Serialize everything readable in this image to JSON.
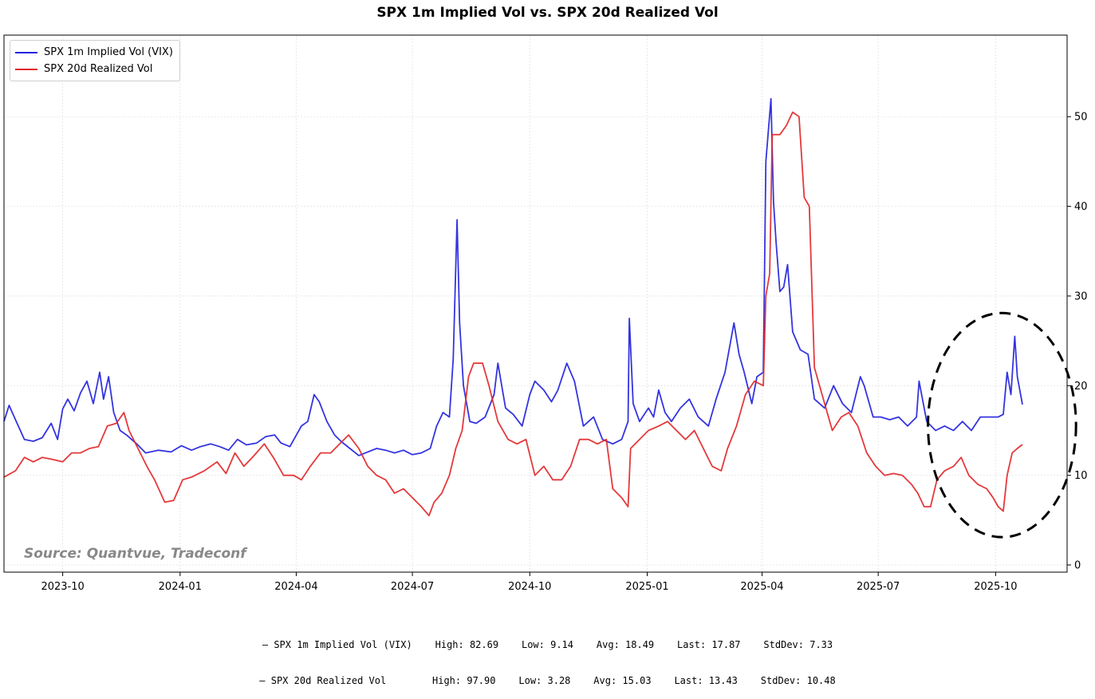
{
  "colors": {
    "implied": "#2323dd",
    "realized": "#e2282a",
    "annotation": "#000000",
    "source": "#888888"
  },
  "chart_data": {
    "type": "line",
    "title": "SPX 1m Implied Vol vs. SPX 20d Realized Vol",
    "xlabel": "",
    "ylabel": "",
    "xlim": [
      "2023-08-16",
      "2025-11-26"
    ],
    "ylim": [
      -0.8,
      59.1
    ],
    "y_axis_side": "right",
    "x_ticks": [
      "2023-10",
      "2024-01",
      "2024-04",
      "2024-07",
      "2024-10",
      "2025-01",
      "2025-04",
      "2025-07",
      "2025-10"
    ],
    "y_ticks": [
      0,
      10,
      20,
      30,
      40,
      50
    ],
    "grid": true,
    "legend_position": "top-left",
    "series": [
      {
        "name": "SPX 1m Implied Vol (VIX)",
        "color": "#2323dd",
        "points": [
          [
            "2023-08-16",
            16
          ],
          [
            "2023-08-20",
            17.8
          ],
          [
            "2023-08-25",
            16.2
          ],
          [
            "2023-09-01",
            14
          ],
          [
            "2023-09-08",
            13.8
          ],
          [
            "2023-09-15",
            14.2
          ],
          [
            "2023-09-22",
            15.8
          ],
          [
            "2023-09-27",
            14
          ],
          [
            "2023-10-01",
            17.4
          ],
          [
            "2023-10-05",
            18.5
          ],
          [
            "2023-10-10",
            17.2
          ],
          [
            "2023-10-15",
            19.2
          ],
          [
            "2023-10-20",
            20.5
          ],
          [
            "2023-10-25",
            18
          ],
          [
            "2023-10-30",
            21.5
          ],
          [
            "2023-11-02",
            18.5
          ],
          [
            "2023-11-06",
            21
          ],
          [
            "2023-11-10",
            17
          ],
          [
            "2023-11-15",
            15
          ],
          [
            "2023-11-20",
            14.5
          ],
          [
            "2023-11-28",
            13.5
          ],
          [
            "2023-12-05",
            12.5
          ],
          [
            "2023-12-15",
            12.8
          ],
          [
            "2023-12-25",
            12.6
          ],
          [
            "2024-01-02",
            13.3
          ],
          [
            "2024-01-10",
            12.8
          ],
          [
            "2024-01-17",
            13.2
          ],
          [
            "2024-01-25",
            13.5
          ],
          [
            "2024-02-01",
            13.2
          ],
          [
            "2024-02-08",
            12.8
          ],
          [
            "2024-02-15",
            14
          ],
          [
            "2024-02-22",
            13.4
          ],
          [
            "2024-03-01",
            13.6
          ],
          [
            "2024-03-08",
            14.3
          ],
          [
            "2024-03-15",
            14.5
          ],
          [
            "2024-03-20",
            13.6
          ],
          [
            "2024-03-27",
            13.2
          ],
          [
            "2024-04-05",
            15.5
          ],
          [
            "2024-04-10",
            16
          ],
          [
            "2024-04-15",
            19
          ],
          [
            "2024-04-19",
            18.2
          ],
          [
            "2024-04-25",
            16
          ],
          [
            "2024-05-01",
            14.5
          ],
          [
            "2024-05-06",
            13.8
          ],
          [
            "2024-05-13",
            13
          ],
          [
            "2024-05-20",
            12.2
          ],
          [
            "2024-05-27",
            12.6
          ],
          [
            "2024-06-03",
            13
          ],
          [
            "2024-06-10",
            12.8
          ],
          [
            "2024-06-17",
            12.5
          ],
          [
            "2024-06-24",
            12.8
          ],
          [
            "2024-07-01",
            12.3
          ],
          [
            "2024-07-08",
            12.5
          ],
          [
            "2024-07-15",
            13
          ],
          [
            "2024-07-20",
            15.5
          ],
          [
            "2024-07-25",
            17
          ],
          [
            "2024-07-30",
            16.5
          ],
          [
            "2024-08-02",
            23
          ],
          [
            "2024-08-05",
            38.5
          ],
          [
            "2024-08-07",
            27
          ],
          [
            "2024-08-10",
            20
          ],
          [
            "2024-08-15",
            16
          ],
          [
            "2024-08-20",
            15.8
          ],
          [
            "2024-08-27",
            16.5
          ],
          [
            "2024-09-03",
            19
          ],
          [
            "2024-09-06",
            22.5
          ],
          [
            "2024-09-12",
            17.5
          ],
          [
            "2024-09-18",
            16.8
          ],
          [
            "2024-09-25",
            15.5
          ],
          [
            "2024-10-01",
            19
          ],
          [
            "2024-10-05",
            20.5
          ],
          [
            "2024-10-12",
            19.5
          ],
          [
            "2024-10-18",
            18.2
          ],
          [
            "2024-10-23",
            19.5
          ],
          [
            "2024-10-30",
            22.5
          ],
          [
            "2024-11-05",
            20.5
          ],
          [
            "2024-11-12",
            15.5
          ],
          [
            "2024-11-20",
            16.5
          ],
          [
            "2024-11-27",
            14
          ],
          [
            "2024-12-05",
            13.5
          ],
          [
            "2024-12-12",
            14
          ],
          [
            "2024-12-17",
            16
          ],
          [
            "2024-12-18",
            27.5
          ],
          [
            "2024-12-21",
            18
          ],
          [
            "2024-12-26",
            16
          ],
          [
            "2025-01-02",
            17.5
          ],
          [
            "2025-01-06",
            16.5
          ],
          [
            "2025-01-10",
            19.5
          ],
          [
            "2025-01-15",
            17
          ],
          [
            "2025-01-20",
            16
          ],
          [
            "2025-01-27",
            17.5
          ],
          [
            "2025-02-03",
            18.5
          ],
          [
            "2025-02-10",
            16.5
          ],
          [
            "2025-02-18",
            15.5
          ],
          [
            "2025-02-24",
            18.5
          ],
          [
            "2025-03-03",
            21.5
          ],
          [
            "2025-03-10",
            27
          ],
          [
            "2025-03-14",
            23.5
          ],
          [
            "2025-03-18",
            21.5
          ],
          [
            "2025-03-24",
            18
          ],
          [
            "2025-03-28",
            21
          ],
          [
            "2025-04-02",
            21.5
          ],
          [
            "2025-04-04",
            45
          ],
          [
            "2025-04-08",
            52
          ],
          [
            "2025-04-10",
            40.5
          ],
          [
            "2025-04-12",
            36
          ],
          [
            "2025-04-15",
            30.5
          ],
          [
            "2025-04-18",
            31
          ],
          [
            "2025-04-21",
            33.5
          ],
          [
            "2025-04-25",
            26
          ],
          [
            "2025-05-01",
            24
          ],
          [
            "2025-05-07",
            23.5
          ],
          [
            "2025-05-12",
            18.5
          ],
          [
            "2025-05-20",
            17.5
          ],
          [
            "2025-05-27",
            20
          ],
          [
            "2025-06-03",
            18
          ],
          [
            "2025-06-10",
            17
          ],
          [
            "2025-06-17",
            21
          ],
          [
            "2025-06-20",
            20
          ],
          [
            "2025-06-27",
            16.5
          ],
          [
            "2025-07-03",
            16.5
          ],
          [
            "2025-07-10",
            16.2
          ],
          [
            "2025-07-17",
            16.5
          ],
          [
            "2025-07-24",
            15.5
          ],
          [
            "2025-07-31",
            16.5
          ],
          [
            "2025-08-02",
            20.5
          ],
          [
            "2025-08-08",
            16
          ],
          [
            "2025-08-15",
            15
          ],
          [
            "2025-08-22",
            15.5
          ],
          [
            "2025-08-29",
            15
          ],
          [
            "2025-09-05",
            16
          ],
          [
            "2025-09-12",
            15
          ],
          [
            "2025-09-19",
            16.5
          ],
          [
            "2025-09-26",
            16.5
          ],
          [
            "2025-10-03",
            16.5
          ],
          [
            "2025-10-07",
            16.8
          ],
          [
            "2025-10-10",
            21.5
          ],
          [
            "2025-10-13",
            19
          ],
          [
            "2025-10-16",
            25.5
          ],
          [
            "2025-10-18",
            21
          ],
          [
            "2025-10-22",
            17.9
          ]
        ]
      },
      {
        "name": "SPX 20d Realized Vol",
        "color": "#e2282a",
        "points": [
          [
            "2023-08-16",
            9.8
          ],
          [
            "2023-08-25",
            10.5
          ],
          [
            "2023-09-01",
            12
          ],
          [
            "2023-09-08",
            11.5
          ],
          [
            "2023-09-15",
            12
          ],
          [
            "2023-09-22",
            11.8
          ],
          [
            "2023-10-01",
            11.5
          ],
          [
            "2023-10-08",
            12.5
          ],
          [
            "2023-10-15",
            12.5
          ],
          [
            "2023-10-22",
            13
          ],
          [
            "2023-10-29",
            13.2
          ],
          [
            "2023-11-05",
            15.5
          ],
          [
            "2023-11-12",
            15.8
          ],
          [
            "2023-11-18",
            17
          ],
          [
            "2023-11-22",
            15
          ],
          [
            "2023-11-29",
            13
          ],
          [
            "2023-12-06",
            11
          ],
          [
            "2023-12-12",
            9.5
          ],
          [
            "2023-12-20",
            7
          ],
          [
            "2023-12-27",
            7.2
          ],
          [
            "2024-01-03",
            9.5
          ],
          [
            "2024-01-10",
            9.8
          ],
          [
            "2024-01-20",
            10.5
          ],
          [
            "2024-01-30",
            11.5
          ],
          [
            "2024-02-06",
            10.2
          ],
          [
            "2024-02-13",
            12.5
          ],
          [
            "2024-02-20",
            11
          ],
          [
            "2024-02-28",
            12.2
          ],
          [
            "2024-03-07",
            13.5
          ],
          [
            "2024-03-14",
            12
          ],
          [
            "2024-03-22",
            10
          ],
          [
            "2024-03-30",
            10
          ],
          [
            "2024-04-05",
            9.5
          ],
          [
            "2024-04-12",
            11
          ],
          [
            "2024-04-20",
            12.5
          ],
          [
            "2024-04-28",
            12.5
          ],
          [
            "2024-05-05",
            13.5
          ],
          [
            "2024-05-12",
            14.5
          ],
          [
            "2024-05-20",
            13
          ],
          [
            "2024-05-27",
            11
          ],
          [
            "2024-06-03",
            10
          ],
          [
            "2024-06-10",
            9.5
          ],
          [
            "2024-06-17",
            8
          ],
          [
            "2024-06-24",
            8.5
          ],
          [
            "2024-07-01",
            7.5
          ],
          [
            "2024-07-08",
            6.5
          ],
          [
            "2024-07-14",
            5.5
          ],
          [
            "2024-07-18",
            7
          ],
          [
            "2024-07-24",
            8
          ],
          [
            "2024-07-30",
            10
          ],
          [
            "2024-08-04",
            13
          ],
          [
            "2024-08-09",
            15
          ],
          [
            "2024-08-14",
            21
          ],
          [
            "2024-08-18",
            22.5
          ],
          [
            "2024-08-25",
            22.5
          ],
          [
            "2024-08-30",
            20
          ],
          [
            "2024-09-06",
            16
          ],
          [
            "2024-09-14",
            14
          ],
          [
            "2024-09-21",
            13.5
          ],
          [
            "2024-09-28",
            14
          ],
          [
            "2024-10-05",
            10
          ],
          [
            "2024-10-12",
            11
          ],
          [
            "2024-10-19",
            9.5
          ],
          [
            "2024-10-26",
            9.5
          ],
          [
            "2024-11-02",
            11
          ],
          [
            "2024-11-09",
            14
          ],
          [
            "2024-11-16",
            14
          ],
          [
            "2024-11-23",
            13.5
          ],
          [
            "2024-11-30",
            14
          ],
          [
            "2024-12-05",
            8.5
          ],
          [
            "2024-12-12",
            7.5
          ],
          [
            "2024-12-17",
            6.5
          ],
          [
            "2024-12-19",
            13
          ],
          [
            "2024-12-26",
            14
          ],
          [
            "2025-01-02",
            15
          ],
          [
            "2025-01-10",
            15.5
          ],
          [
            "2025-01-17",
            16
          ],
          [
            "2025-01-24",
            15
          ],
          [
            "2025-01-31",
            14
          ],
          [
            "2025-02-07",
            15
          ],
          [
            "2025-02-14",
            13
          ],
          [
            "2025-02-21",
            11
          ],
          [
            "2025-02-28",
            10.5
          ],
          [
            "2025-03-05",
            13
          ],
          [
            "2025-03-12",
            15.5
          ],
          [
            "2025-03-19",
            19
          ],
          [
            "2025-03-26",
            20.5
          ],
          [
            "2025-04-02",
            20
          ],
          [
            "2025-04-04",
            30
          ],
          [
            "2025-04-07",
            32.5
          ],
          [
            "2025-04-09",
            48
          ],
          [
            "2025-04-15",
            48
          ],
          [
            "2025-04-20",
            49
          ],
          [
            "2025-04-25",
            50.5
          ],
          [
            "2025-04-30",
            50
          ],
          [
            "2025-05-04",
            41
          ],
          [
            "2025-05-08",
            40
          ],
          [
            "2025-05-12",
            22
          ],
          [
            "2025-05-16",
            20
          ],
          [
            "2025-05-22",
            17
          ],
          [
            "2025-05-26",
            15
          ],
          [
            "2025-06-02",
            16.5
          ],
          [
            "2025-06-08",
            17
          ],
          [
            "2025-06-15",
            15.5
          ],
          [
            "2025-06-22",
            12.5
          ],
          [
            "2025-06-29",
            11
          ],
          [
            "2025-07-06",
            10
          ],
          [
            "2025-07-13",
            10.2
          ],
          [
            "2025-07-20",
            10
          ],
          [
            "2025-07-27",
            9
          ],
          [
            "2025-08-01",
            8
          ],
          [
            "2025-08-06",
            6.5
          ],
          [
            "2025-08-11",
            6.5
          ],
          [
            "2025-08-16",
            9.5
          ],
          [
            "2025-08-22",
            10.5
          ],
          [
            "2025-08-29",
            11
          ],
          [
            "2025-09-04",
            12
          ],
          [
            "2025-09-10",
            10
          ],
          [
            "2025-09-17",
            9
          ],
          [
            "2025-09-24",
            8.5
          ],
          [
            "2025-09-29",
            7.5
          ],
          [
            "2025-10-03",
            6.5
          ],
          [
            "2025-10-07",
            6
          ],
          [
            "2025-10-10",
            10
          ],
          [
            "2025-10-14",
            12.5
          ],
          [
            "2025-10-18",
            13
          ],
          [
            "2025-10-22",
            13.43
          ]
        ]
      }
    ],
    "annotations": [
      {
        "type": "dashed-ellipse",
        "center": [
          "2025-10-06",
          15.6
        ],
        "radius_x_days": 58,
        "radius_y": 12.5,
        "color": "#000000"
      }
    ]
  },
  "source_text": "Source: Quantvue, Tradeconf",
  "stats": [
    "— SPX 1m Implied Vol (VIX)    High: 82.69    Low: 9.14    Avg: 18.49    Last: 17.87    StdDev: 7.33",
    "— SPX 20d Realized Vol        High: 97.90    Low: 3.28    Avg: 15.03    Last: 13.43    StdDev: 10.48"
  ]
}
